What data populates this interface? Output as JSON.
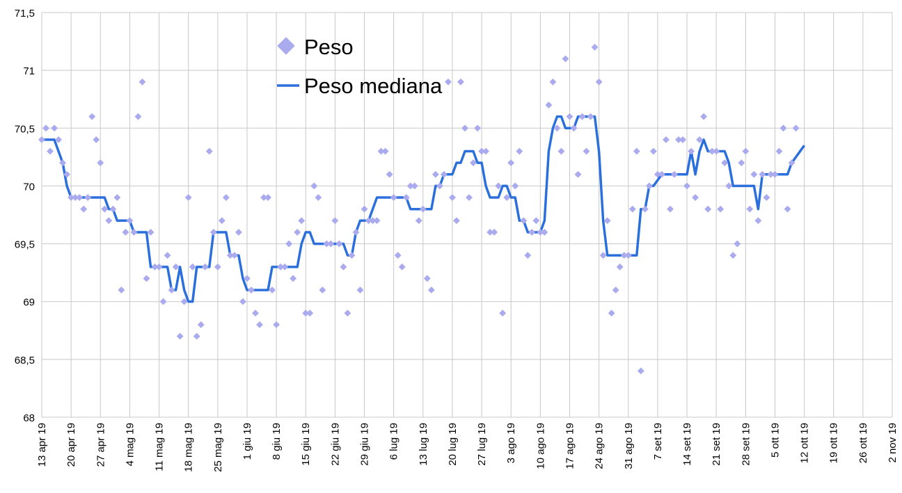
{
  "chart_data": {
    "type": "line",
    "title": "",
    "xlabel": "",
    "ylabel": "",
    "x_start": "2019-04-13",
    "xlim": [
      "2019-04-13",
      "2019-11-02"
    ],
    "ylim": [
      68,
      71.5
    ],
    "grid": true,
    "legend_position": "top-center",
    "y_ticks": [
      "68",
      "68,5",
      "69",
      "69,5",
      "70",
      "70,5",
      "71",
      "71,5"
    ],
    "x_ticks": [
      "13 apr 19",
      "20 apr 19",
      "27 apr 19",
      "4 mag 19",
      "11 mag 19",
      "18 mag 19",
      "25 mag 19",
      "1 giu 19",
      "8 giu 19",
      "15 giu 19",
      "22 giu 19",
      "29 giu 19",
      "6 lug 19",
      "13 lug 19",
      "20 lug 19",
      "27 lug 19",
      "3 ago 19",
      "10 ago 19",
      "17 ago 19",
      "24 ago 19",
      "31 ago 19",
      "7 set 19",
      "14 set 19",
      "21 set 19",
      "28 set 19",
      "5 ott 19",
      "12 ott 19",
      "19 ott 19",
      "26 ott 19",
      "2 nov 19"
    ],
    "series": [
      {
        "name": "Peso",
        "style": "scatter",
        "color": "#aaaaee",
        "marker": "diamond",
        "values": [
          70.4,
          70.5,
          70.3,
          70.5,
          70.4,
          70.2,
          70.1,
          69.9,
          69.9,
          69.9,
          69.8,
          69.9,
          70.6,
          70.4,
          70.2,
          69.8,
          69.7,
          69.8,
          69.9,
          69.1,
          69.6,
          69.7,
          69.6,
          70.6,
          70.9,
          69.2,
          69.6,
          69.3,
          69.3,
          69.0,
          69.4,
          69.1,
          69.3,
          68.7,
          69.0,
          69.9,
          69.3,
          68.7,
          68.8,
          69.3,
          70.3,
          69.6,
          69.3,
          69.7,
          69.9,
          69.4,
          69.4,
          69.6,
          69.0,
          69.2,
          69.1,
          68.9,
          68.8,
          69.9,
          69.9,
          69.1,
          68.8,
          69.3,
          69.3,
          69.5,
          69.2,
          69.6,
          69.7,
          68.9,
          68.9,
          70.0,
          69.9,
          69.1,
          69.5,
          69.5,
          69.7,
          69.5,
          69.3,
          68.9,
          69.4,
          69.6,
          69.1,
          69.8,
          69.7,
          69.7,
          69.7,
          70.3,
          70.3,
          70.1,
          69.9,
          69.4,
          69.3,
          69.9,
          70.0,
          70.0,
          69.7,
          69.8,
          69.2,
          69.1,
          70.1,
          70.0,
          70.1,
          70.9,
          69.9,
          69.7,
          70.9,
          70.5,
          69.9,
          70.2,
          70.5,
          70.3,
          70.3,
          69.6,
          69.6,
          70.0,
          68.9,
          69.9,
          70.2,
          70.0,
          70.3,
          69.7,
          69.4,
          69.6,
          69.7,
          69.6,
          69.6,
          70.7,
          70.9,
          70.5,
          70.3,
          71.1,
          70.6,
          70.5,
          70.1,
          70.6,
          70.3,
          70.6,
          71.2,
          70.9,
          69.4,
          69.7,
          68.9,
          69.1,
          69.3,
          69.4,
          69.4,
          69.8,
          70.3,
          68.4,
          69.8,
          70.0,
          70.3,
          70.1,
          70.1,
          70.4,
          69.8,
          70.1,
          70.4,
          70.4,
          70.0,
          70.3,
          69.9,
          70.4,
          70.6,
          69.8,
          70.3,
          70.3,
          69.8,
          70.2,
          70.0,
          69.4,
          69.5,
          70.2,
          70.3,
          69.8,
          70.1,
          69.7,
          70.1,
          69.9,
          70.1,
          70.1,
          70.3,
          70.5,
          69.8,
          70.2,
          70.5
        ]
      },
      {
        "name": "Peso mediana",
        "style": "line",
        "color": "#2a6fdb",
        "values": [
          70.4,
          70.4,
          70.4,
          70.4,
          70.3,
          70.2,
          70.0,
          69.9,
          69.9,
          69.9,
          69.9,
          69.9,
          69.9,
          69.9,
          69.9,
          69.9,
          69.8,
          69.8,
          69.7,
          69.7,
          69.7,
          69.7,
          69.6,
          69.6,
          69.6,
          69.6,
          69.3,
          69.3,
          69.3,
          69.3,
          69.3,
          69.1,
          69.1,
          69.3,
          69.1,
          69.0,
          69.0,
          69.3,
          69.3,
          69.3,
          69.3,
          69.6,
          69.6,
          69.6,
          69.6,
          69.4,
          69.4,
          69.4,
          69.2,
          69.1,
          69.1,
          69.1,
          69.1,
          69.1,
          69.1,
          69.3,
          69.3,
          69.3,
          69.3,
          69.3,
          69.3,
          69.3,
          69.5,
          69.6,
          69.6,
          69.5,
          69.5,
          69.5,
          69.5,
          69.5,
          69.5,
          69.5,
          69.5,
          69.4,
          69.4,
          69.6,
          69.7,
          69.7,
          69.7,
          69.8,
          69.9,
          69.9,
          69.9,
          69.9,
          69.9,
          69.9,
          69.9,
          69.9,
          69.8,
          69.8,
          69.8,
          69.8,
          69.8,
          69.8,
          70.0,
          70.0,
          70.1,
          70.1,
          70.1,
          70.2,
          70.2,
          70.3,
          70.3,
          70.3,
          70.2,
          70.2,
          70.0,
          69.9,
          69.9,
          69.9,
          70.0,
          70.0,
          69.9,
          69.9,
          69.7,
          69.7,
          69.6,
          69.6,
          69.6,
          69.6,
          69.7,
          70.3,
          70.5,
          70.6,
          70.6,
          70.5,
          70.5,
          70.5,
          70.6,
          70.6,
          70.6,
          70.6,
          70.6,
          70.3,
          69.7,
          69.4,
          69.4,
          69.4,
          69.4,
          69.4,
          69.4,
          69.4,
          69.4,
          69.8,
          69.8,
          70.0,
          70.0,
          70.05,
          70.1,
          70.1,
          70.1,
          70.1,
          70.1,
          70.1,
          70.1,
          70.3,
          70.1,
          70.3,
          70.4,
          70.3,
          70.3,
          70.3,
          70.3,
          70.3,
          70.2,
          70.0,
          70.0,
          70.0,
          70.0,
          70.0,
          70.0,
          69.8,
          70.1,
          70.1,
          70.1,
          70.1,
          70.1,
          70.1,
          70.1,
          70.2,
          70.25,
          70.3,
          70.35
        ]
      }
    ]
  }
}
